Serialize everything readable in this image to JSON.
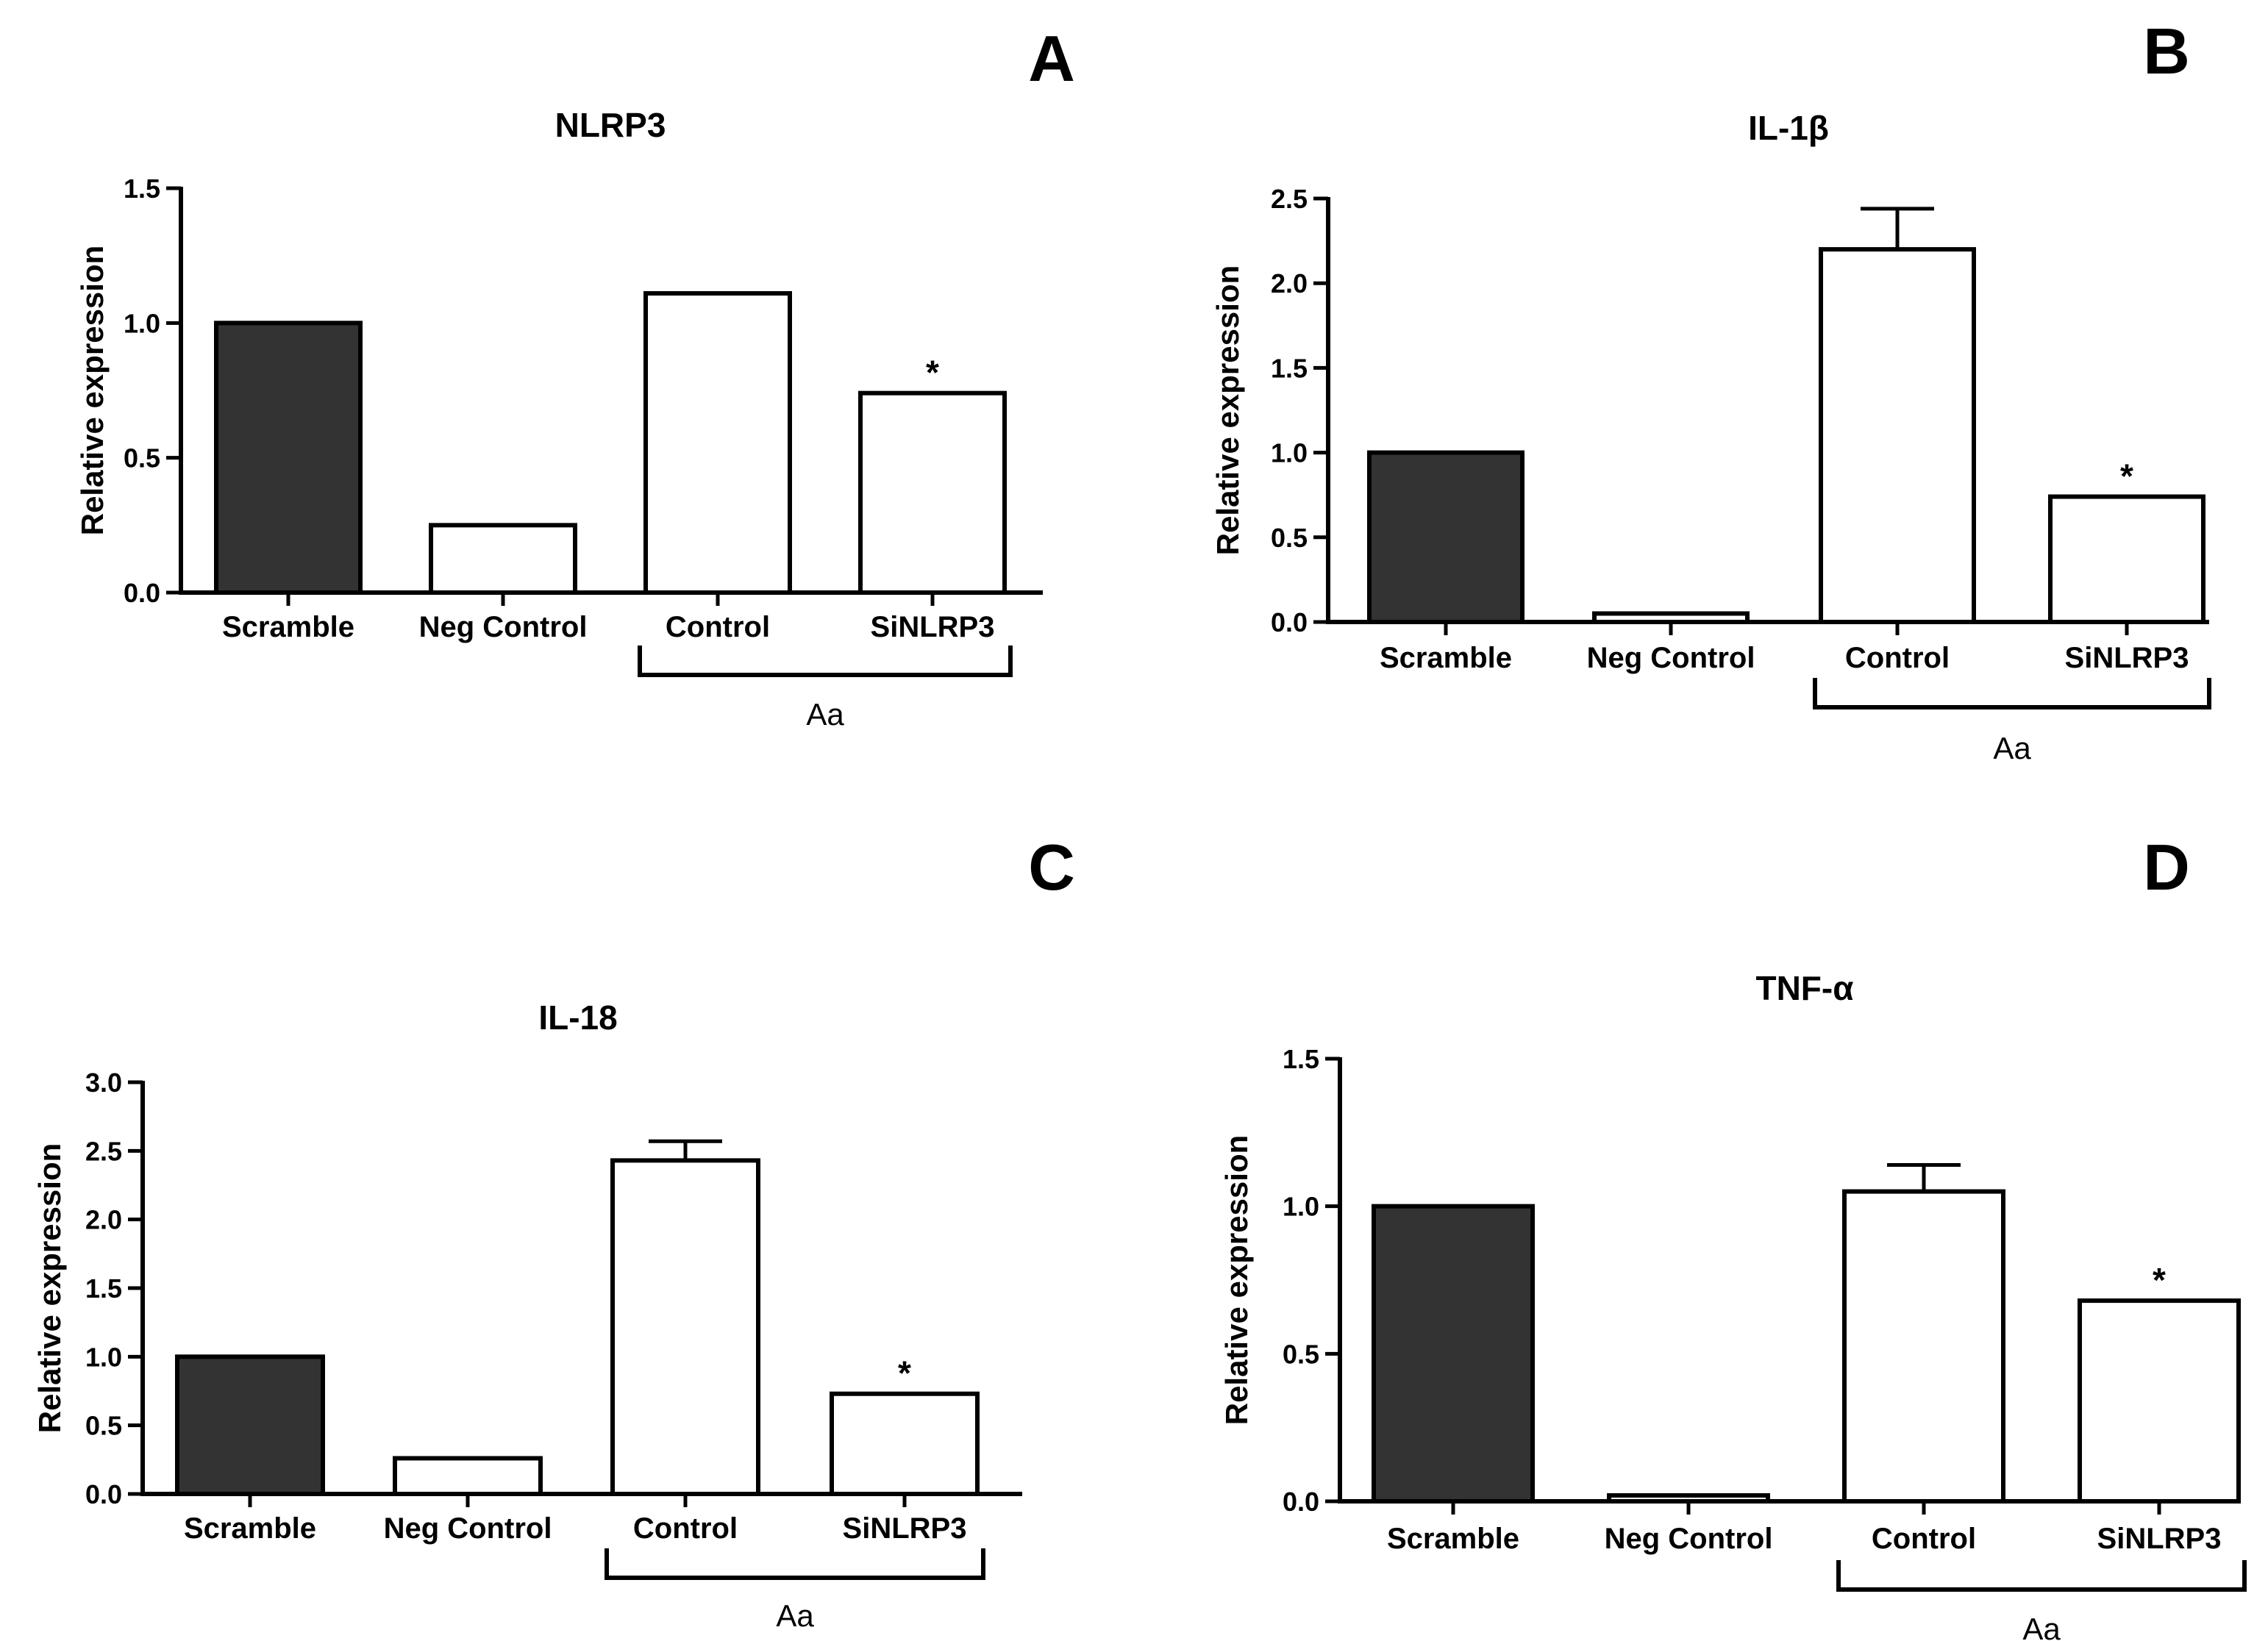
{
  "figure": {
    "panels": [
      "A",
      "B",
      "C",
      "D"
    ]
  },
  "colors": {
    "filled_bar": "#333333",
    "open_bar": "#ffffff",
    "stroke": "#000000"
  },
  "chart_data": [
    {
      "panel": "A",
      "type": "bar",
      "title": "NLRP3",
      "ylabel": "Relative expression",
      "xlabel": "",
      "categories": [
        "Scramble",
        "Neg Control",
        "Control",
        "SiNLRP3"
      ],
      "values": [
        1.0,
        0.25,
        1.11,
        0.74
      ],
      "errors": [
        0,
        0,
        0,
        0
      ],
      "filled": [
        true,
        false,
        false,
        false
      ],
      "significance": [
        "",
        "",
        "",
        "*"
      ],
      "ylim": [
        0,
        1.5
      ],
      "yticks": [
        0.0,
        0.5,
        1.0,
        1.5
      ],
      "ytick_labels": [
        "0.0",
        "0.5",
        "1.0",
        "1.5"
      ],
      "group_label": "Aa",
      "group_span": [
        2,
        3
      ]
    },
    {
      "panel": "B",
      "type": "bar",
      "title": "IL-1β",
      "ylabel": "Relative expression",
      "xlabel": "",
      "categories": [
        "Scramble",
        "Neg Control",
        "Control",
        "SiNLRP3"
      ],
      "values": [
        1.0,
        0.05,
        2.2,
        0.74
      ],
      "errors": [
        0,
        0,
        0.24,
        0
      ],
      "filled": [
        true,
        false,
        false,
        false
      ],
      "significance": [
        "",
        "",
        "",
        "*"
      ],
      "ylim": [
        0,
        2.5
      ],
      "yticks": [
        0.0,
        0.5,
        1.0,
        1.5,
        2.0,
        2.5
      ],
      "ytick_labels": [
        "0.0",
        "0.5",
        "1.0",
        "1.5",
        "2.0",
        "2.5"
      ],
      "group_label": "Aa",
      "group_span": [
        2,
        3
      ]
    },
    {
      "panel": "C",
      "type": "bar",
      "title": "IL-18",
      "ylabel": "Relative expression",
      "xlabel": "",
      "categories": [
        "Scramble",
        "Neg Control",
        "Control",
        "SiNLRP3"
      ],
      "values": [
        1.0,
        0.26,
        2.43,
        0.73
      ],
      "errors": [
        0,
        0,
        0.14,
        0
      ],
      "filled": [
        true,
        false,
        false,
        false
      ],
      "significance": [
        "",
        "",
        "",
        "*"
      ],
      "ylim": [
        0,
        3.0
      ],
      "yticks": [
        0.0,
        0.5,
        1.0,
        1.5,
        2.0,
        2.5,
        3.0
      ],
      "ytick_labels": [
        "0.0",
        "0.5",
        "1.0",
        "1.5",
        "2.0",
        "2.5",
        "3.0"
      ],
      "group_label": "Aa",
      "group_span": [
        2,
        3
      ]
    },
    {
      "panel": "D",
      "type": "bar",
      "title": "TNF-α",
      "ylabel": "Relative expression",
      "xlabel": "",
      "categories": [
        "Scramble",
        "Neg Control",
        "Control",
        "SiNLRP3"
      ],
      "values": [
        1.0,
        0.02,
        1.05,
        0.68
      ],
      "errors": [
        0,
        0,
        0.09,
        0
      ],
      "filled": [
        true,
        false,
        false,
        false
      ],
      "significance": [
        "",
        "",
        "",
        "*"
      ],
      "ylim": [
        0,
        1.5
      ],
      "yticks": [
        0.0,
        0.5,
        1.0,
        1.5
      ],
      "ytick_labels": [
        "0.0",
        "0.5",
        "1.0",
        "1.5"
      ],
      "group_label": "Aa",
      "group_span": [
        2,
        3
      ]
    }
  ]
}
